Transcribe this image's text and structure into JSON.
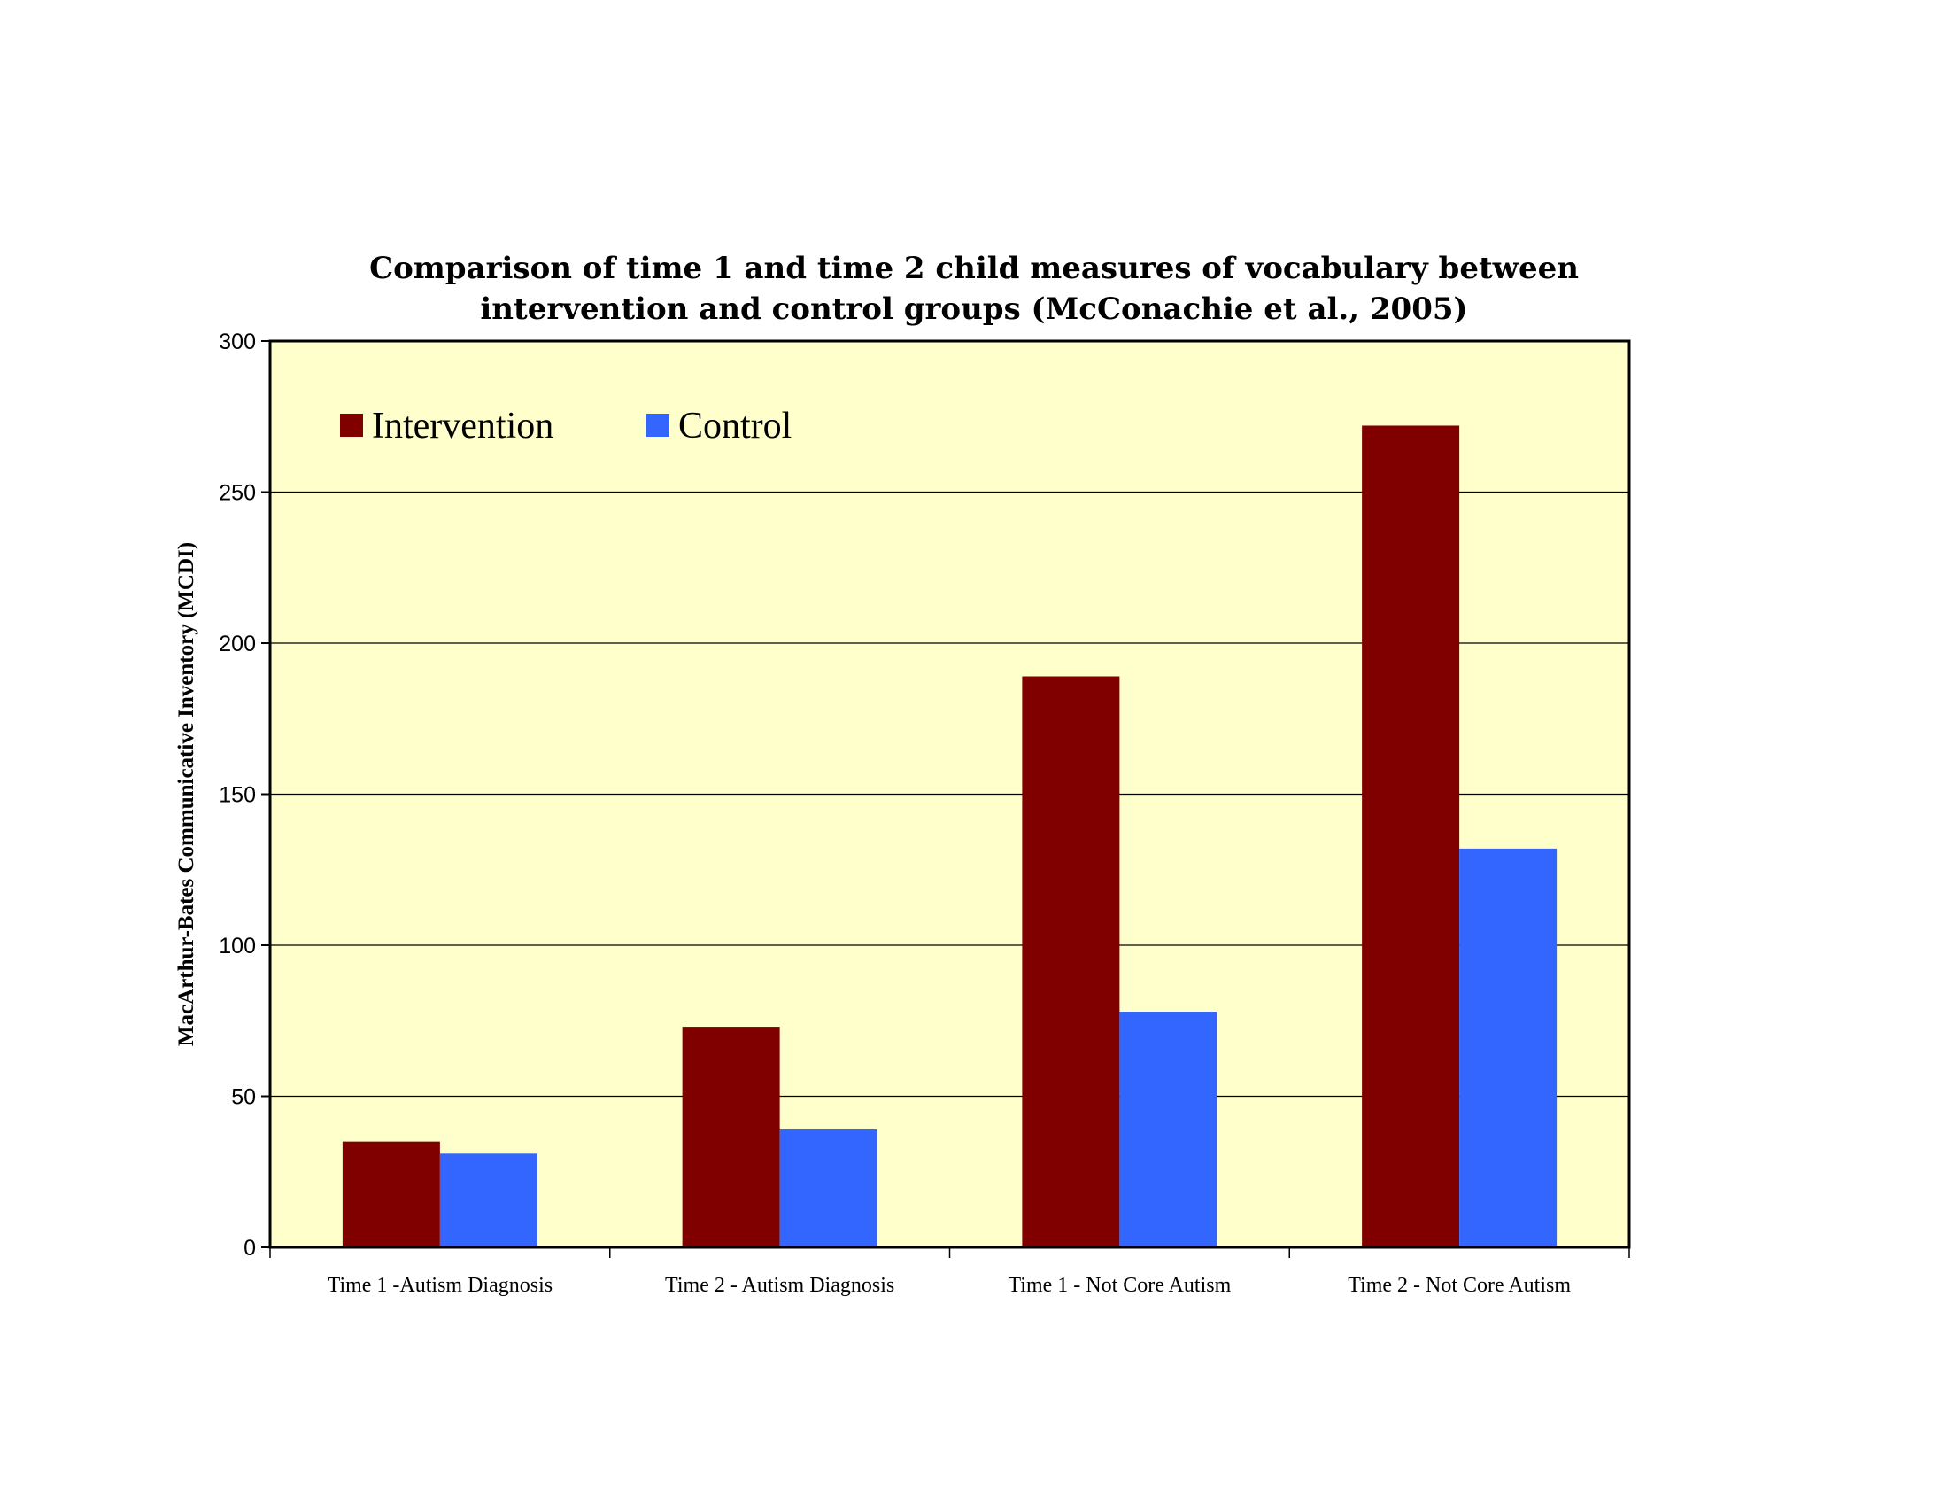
{
  "chart_data": {
    "type": "bar",
    "title_lines": [
      "Comparison of time 1 and time 2 child measures of vocabulary between",
      "intervention and control groups (McConachie et al., 2005)"
    ],
    "xlabel": "",
    "ylabel": "MacArthur-Bates Communicative Inventory (MCDI)",
    "categories": [
      "Time 1 -Autism Diagnosis",
      "Time 2 - Autism Diagnosis",
      "Time 1 - Not Core Autism",
      "Time 2 - Not Core Autism"
    ],
    "series": [
      {
        "name": "Intervention",
        "color": "#800000",
        "values": [
          35,
          73,
          189,
          272
        ]
      },
      {
        "name": "Control",
        "color": "#3366FF",
        "values": [
          31,
          39,
          78,
          132
        ]
      }
    ],
    "ylim": [
      0,
      300
    ],
    "yticks": [
      0,
      50,
      100,
      150,
      200,
      250,
      300
    ],
    "grid": true,
    "legend_position": "top-left",
    "plot_background": "#FFFFCC"
  }
}
